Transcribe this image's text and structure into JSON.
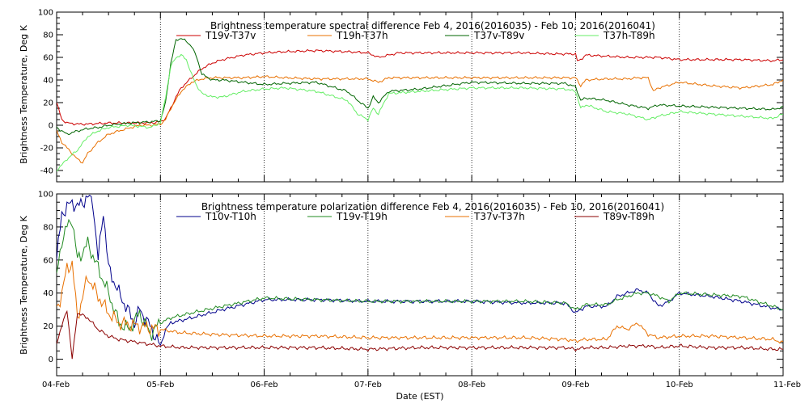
{
  "chart_data": [
    {
      "type": "line",
      "title": "Brightness temperature spectral difference    Feb  4, 2016(2016035) - Feb 10, 2016(2016041)",
      "ylabel": "Brightness Temperature, Deg K",
      "xlabel": "",
      "xlim": [
        0,
        7
      ],
      "ylim": [
        -50,
        100
      ],
      "yticks": [
        -40,
        -20,
        0,
        20,
        40,
        60,
        80,
        100
      ],
      "grid": "vertical dotted",
      "legend_position": "top",
      "series": [
        {
          "name": "T19v-T37v",
          "color": "#cc0000",
          "x": [
            0,
            0.05,
            0.1,
            0.2,
            0.3,
            0.5,
            0.7,
            0.9,
            1.0,
            1.05,
            1.1,
            1.15,
            1.2,
            1.3,
            1.4,
            1.5,
            1.6,
            1.8,
            2.0,
            2.2,
            2.5,
            2.8,
            3.0,
            3.1,
            3.2,
            3.3,
            3.5,
            3.8,
            4.0,
            4.2,
            4.5,
            4.8,
            5.0,
            5.02,
            5.1,
            5.3,
            5.5,
            5.8,
            6.0,
            6.3,
            6.6,
            6.9,
            7.0
          ],
          "y": [
            20,
            5,
            2,
            1,
            1,
            2,
            2,
            2,
            3,
            6,
            15,
            25,
            33,
            42,
            50,
            55,
            58,
            62,
            64,
            65,
            66,
            65,
            64,
            60,
            62,
            64,
            64,
            64,
            64,
            64,
            64,
            63,
            63,
            56,
            62,
            61,
            60,
            60,
            58,
            58,
            58,
            57,
            58
          ]
        },
        {
          "name": "T19h-T37h",
          "color": "#e87000",
          "x": [
            0,
            0.05,
            0.1,
            0.2,
            0.25,
            0.3,
            0.4,
            0.5,
            0.6,
            0.8,
            0.9,
            1.0,
            1.05,
            1.1,
            1.2,
            1.3,
            1.4,
            1.5,
            1.6,
            1.8,
            2.0,
            2.2,
            2.5,
            3.0,
            3.1,
            3.2,
            3.5,
            4.0,
            4.5,
            4.9,
            5.0,
            5.05,
            5.1,
            5.3,
            5.5,
            5.6,
            5.7,
            5.75,
            5.8,
            6.0,
            6.3,
            6.6,
            6.9,
            7.0
          ],
          "y": [
            -5,
            -15,
            -20,
            -30,
            -33,
            -25,
            -15,
            -8,
            -5,
            0,
            0,
            1,
            5,
            15,
            30,
            38,
            41,
            42,
            42,
            42,
            43,
            42,
            41,
            41,
            38,
            42,
            42,
            42,
            42,
            42,
            42,
            35,
            40,
            41,
            41,
            42,
            42,
            30,
            33,
            38,
            35,
            33,
            36,
            40
          ]
        },
        {
          "name": "T37v-T89v",
          "color": "#006400",
          "x": [
            0,
            0.05,
            0.1,
            0.2,
            0.3,
            0.4,
            0.5,
            0.7,
            0.9,
            1.0,
            1.05,
            1.1,
            1.15,
            1.2,
            1.25,
            1.3,
            1.35,
            1.4,
            1.5,
            1.6,
            1.8,
            2.0,
            2.2,
            2.5,
            2.8,
            2.9,
            3.0,
            3.05,
            3.1,
            3.2,
            3.5,
            4.0,
            4.5,
            4.9,
            5.0,
            5.05,
            5.1,
            5.3,
            5.5,
            5.7,
            5.8,
            6.0,
            6.3,
            6.6,
            6.9,
            7.0
          ],
          "y": [
            -2,
            -5,
            -8,
            -5,
            -3,
            -2,
            0,
            2,
            3,
            4,
            20,
            55,
            75,
            77,
            74,
            70,
            60,
            45,
            40,
            40,
            38,
            36,
            37,
            38,
            30,
            22,
            15,
            25,
            20,
            30,
            32,
            38,
            37,
            37,
            34,
            22,
            24,
            22,
            18,
            15,
            18,
            17,
            16,
            15,
            14,
            16
          ]
        },
        {
          "name": "T37h-T89h",
          "color": "#66ee66",
          "x": [
            0,
            0.05,
            0.1,
            0.2,
            0.3,
            0.4,
            0.5,
            0.7,
            0.9,
            1.0,
            1.05,
            1.1,
            1.15,
            1.2,
            1.25,
            1.3,
            1.35,
            1.4,
            1.5,
            1.6,
            1.8,
            2.0,
            2.2,
            2.5,
            2.8,
            2.9,
            3.0,
            3.05,
            3.1,
            3.2,
            3.5,
            4.0,
            4.5,
            4.9,
            5.0,
            5.05,
            5.1,
            5.3,
            5.5,
            5.7,
            5.8,
            6.0,
            6.3,
            6.6,
            6.9,
            7.0
          ],
          "y": [
            -40,
            -35,
            -30,
            -22,
            -10,
            -5,
            -2,
            0,
            -2,
            2,
            25,
            52,
            60,
            62,
            58,
            45,
            35,
            28,
            25,
            25,
            30,
            32,
            33,
            30,
            22,
            10,
            5,
            15,
            10,
            28,
            30,
            33,
            33,
            32,
            30,
            15,
            18,
            12,
            10,
            5,
            8,
            12,
            10,
            8,
            6,
            10
          ]
        }
      ]
    },
    {
      "type": "line",
      "title": "Brightness temperature polarization difference    Feb  4, 2016(2016035) - Feb 10, 2016(2016041)",
      "ylabel": "Brightness Temperature, Deg K",
      "xlabel": "Date (EST)",
      "xlim": [
        0,
        7
      ],
      "ylim": [
        -10,
        100
      ],
      "yticks": [
        0,
        20,
        40,
        60,
        80,
        100
      ],
      "xticks": [
        "04-Feb",
        "05-Feb",
        "06-Feb",
        "07-Feb",
        "08-Feb",
        "09-Feb",
        "10-Feb",
        "11-Feb"
      ],
      "grid": "vertical dotted",
      "legend_position": "top",
      "series": [
        {
          "name": "T10v-T10h",
          "color": "#00008b",
          "x": [
            0,
            0.05,
            0.1,
            0.15,
            0.2,
            0.3,
            0.35,
            0.4,
            0.45,
            0.5,
            0.6,
            0.7,
            0.75,
            0.8,
            0.9,
            1.0,
            1.05,
            1.1,
            1.3,
            1.6,
            2.0,
            2.5,
            3.0,
            3.5,
            4.0,
            4.5,
            4.9,
            5.0,
            5.1,
            5.3,
            5.4,
            5.5,
            5.6,
            5.7,
            5.8,
            5.9,
            6.0,
            6.3,
            6.6,
            6.9,
            7.0
          ],
          "y": [
            60,
            88,
            92,
            95,
            92,
            98,
            95,
            60,
            90,
            55,
            40,
            28,
            22,
            30,
            20,
            8,
            18,
            22,
            25,
            30,
            36,
            36,
            35,
            35,
            35,
            34,
            34,
            28,
            32,
            32,
            38,
            40,
            42,
            40,
            32,
            35,
            40,
            38,
            35,
            31,
            30
          ]
        },
        {
          "name": "T19v-T19h",
          "color": "#228b22",
          "x": [
            0,
            0.05,
            0.1,
            0.15,
            0.2,
            0.3,
            0.4,
            0.5,
            0.6,
            0.7,
            0.8,
            0.9,
            1.0,
            1.1,
            1.3,
            1.6,
            2.0,
            2.5,
            3.0,
            3.5,
            4.0,
            4.5,
            4.9,
            5.0,
            5.1,
            5.3,
            5.4,
            5.5,
            5.6,
            5.7,
            5.8,
            5.9,
            6.0,
            6.3,
            6.6,
            6.9,
            7.0
          ],
          "y": [
            50,
            72,
            80,
            85,
            60,
            70,
            55,
            40,
            22,
            18,
            28,
            15,
            22,
            25,
            28,
            32,
            37,
            36,
            35,
            35,
            35,
            35,
            34,
            30,
            33,
            33,
            36,
            38,
            40,
            40,
            38,
            35,
            40,
            39,
            38,
            32,
            30
          ]
        },
        {
          "name": "T37v-T37h",
          "color": "#e87000",
          "x": [
            0,
            0.05,
            0.1,
            0.15,
            0.2,
            0.3,
            0.4,
            0.5,
            0.6,
            0.8,
            1.0,
            1.2,
            1.5,
            2.0,
            2.5,
            3.0,
            3.5,
            4.0,
            4.5,
            4.9,
            5.0,
            5.1,
            5.3,
            5.4,
            5.5,
            5.6,
            5.7,
            5.8,
            6.0,
            6.3,
            6.6,
            6.9,
            7.0
          ],
          "y": [
            30,
            40,
            55,
            58,
            25,
            50,
            38,
            28,
            22,
            20,
            18,
            16,
            15,
            14,
            14,
            13,
            13,
            13,
            13,
            12,
            11,
            12,
            12,
            20,
            18,
            22,
            15,
            13,
            14,
            14,
            13,
            12,
            10
          ]
        },
        {
          "name": "T89v-T89h",
          "color": "#8b0000",
          "x": [
            0,
            0.05,
            0.1,
            0.15,
            0.2,
            0.3,
            0.4,
            0.5,
            0.6,
            0.8,
            1.0,
            1.2,
            1.5,
            2.0,
            2.5,
            3.0,
            3.5,
            4.0,
            4.5,
            4.9,
            5.0,
            5.1,
            5.3,
            5.5,
            5.7,
            5.8,
            6.0,
            6.3,
            6.6,
            6.9,
            7.0
          ],
          "y": [
            10,
            20,
            30,
            0,
            28,
            25,
            18,
            14,
            12,
            10,
            8,
            7,
            7,
            7,
            7,
            6,
            7,
            7,
            7,
            7,
            6,
            7,
            7,
            8,
            8,
            7,
            8,
            7,
            7,
            6,
            6
          ]
        }
      ]
    }
  ]
}
